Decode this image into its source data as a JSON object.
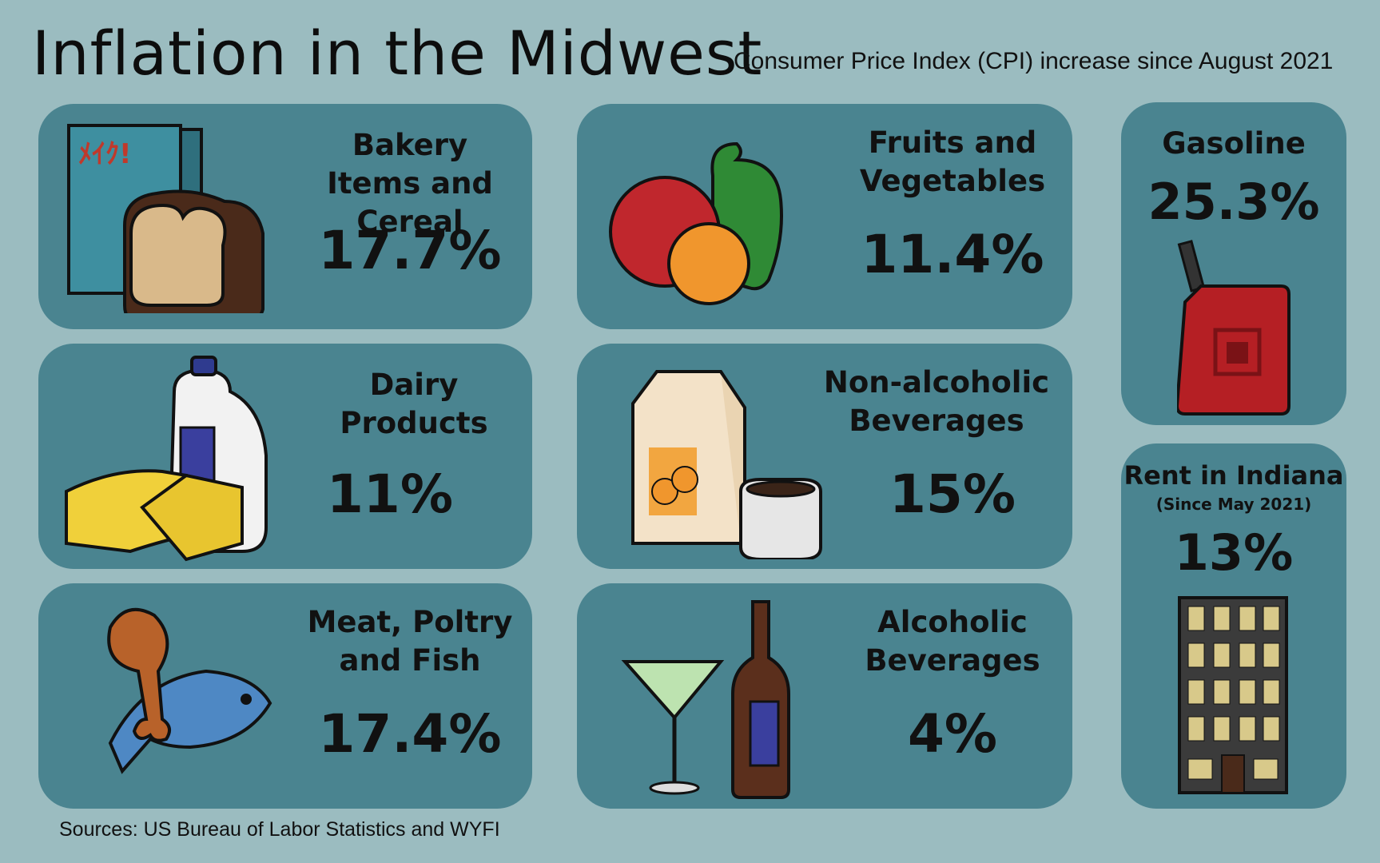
{
  "header": {
    "title": "Inflation in the Midwest",
    "subtitle": "Consumer Price Index (CPI) increase since August 2021"
  },
  "footer": {
    "source": "Sources: US Bureau of Labor Statistics and WYFI"
  },
  "colors": {
    "background": "#9bbcc0",
    "card": "#4a8490"
  },
  "cards": {
    "bakery": {
      "label": "Bakery Items and Cereal",
      "value": "17.7%",
      "icon": "bread-cereal-icon"
    },
    "dairy": {
      "label": "Dairy Products",
      "value": "11%",
      "icon": "milk-cheese-icon"
    },
    "meat": {
      "label": "Meat, Poltry and Fish",
      "value": "17.4%",
      "icon": "drumstick-fish-icon"
    },
    "fruits": {
      "label": "Fruits and Vegetables",
      "value": "11.4%",
      "icon": "fruit-vegetables-icon"
    },
    "nonalc": {
      "label": "Non-alcoholic Beverages",
      "value": "15%",
      "icon": "juice-coffee-icon"
    },
    "alc": {
      "label": "Alcoholic Beverages",
      "value": "4%",
      "icon": "martini-bottle-icon"
    },
    "gasoline": {
      "label": "Gasoline",
      "value": "25.3%",
      "icon": "gas-can-icon"
    },
    "rent": {
      "label": "Rent in Indiana",
      "note": "(Since May 2021)",
      "value": "13%",
      "icon": "building-icon"
    }
  }
}
